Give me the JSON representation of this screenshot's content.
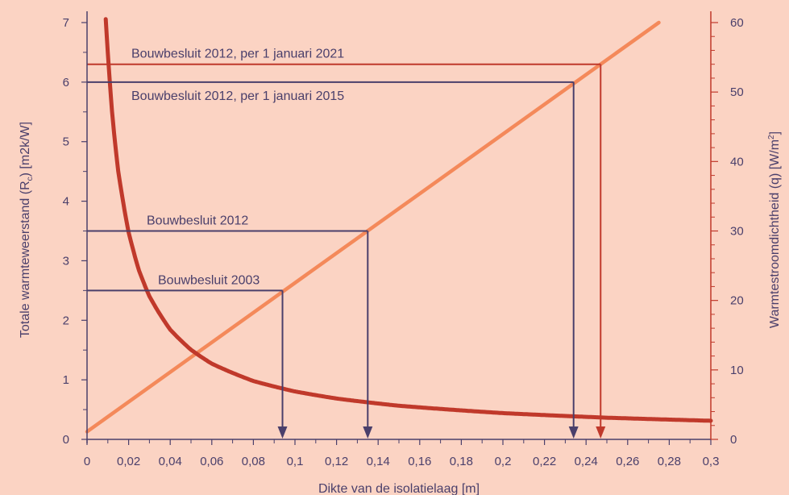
{
  "chart_data": {
    "type": "line",
    "xlabel": "Dikte van de isolatielaag [m]",
    "ylabel_left": {
      "main": "Totale warmteweerstand (R",
      "sub": "c",
      "tail": ") [m2k/W]"
    },
    "ylabel_right": {
      "main": "Warmtestroomdichtheid (q) [W/m",
      "sup": "2",
      "tail": "]"
    },
    "xlim": [
      0,
      0.3
    ],
    "ylim_left": [
      0,
      7
    ],
    "ylim_right": [
      0,
      60
    ],
    "x_ticks": [
      "0",
      "0,02",
      "0,04",
      "0,06",
      "0,08",
      "0,1",
      "0,12",
      "0,14",
      "0,16",
      "0,18",
      "0,2",
      "0,22",
      "0,24",
      "0,26",
      "0,28",
      "0,3"
    ],
    "y_left_ticks": [
      "0",
      "1",
      "2",
      "3",
      "4",
      "5",
      "6",
      "7"
    ],
    "y_right_ticks": [
      "0",
      "10",
      "20",
      "30",
      "40",
      "50",
      "60"
    ],
    "series": [
      {
        "axis": "left",
        "color": "#f4895a",
        "x": [
          0,
          0.275
        ],
        "y": [
          0.13,
          7.0
        ]
      },
      {
        "axis": "right",
        "color": "#c0392b",
        "x": [
          0.009,
          0.01,
          0.012,
          0.015,
          0.02,
          0.025,
          0.03,
          0.04,
          0.05,
          0.06,
          0.08,
          0.1,
          0.12,
          0.15,
          0.2,
          0.25,
          0.3
        ],
        "y": [
          60.5,
          55.6,
          47.2,
          38.6,
          29.8,
          24.3,
          20.6,
          15.8,
          12.9,
          10.9,
          8.4,
          6.9,
          5.88,
          4.84,
          3.78,
          3.12,
          2.68
        ]
      }
    ],
    "annotations": [
      {
        "label": "Bouwbesluit 2003",
        "y": 2.5,
        "x": 0.094,
        "color": "#4a3f6b",
        "label_pos": "above"
      },
      {
        "label": "Bouwbesluit 2012",
        "y": 3.5,
        "x": 0.135,
        "color": "#4a3f6b",
        "label_pos": "above"
      },
      {
        "label": "Bouwbesluit 2012, per 1 januari 2015",
        "y": 6.0,
        "x": 0.234,
        "color": "#4a3f6b",
        "label_pos": "below"
      },
      {
        "label": "Bouwbesluit 2012, per 1 januari 2021",
        "y": 6.3,
        "x": 0.247,
        "color": "#c0392b",
        "label_pos": "above"
      }
    ]
  }
}
